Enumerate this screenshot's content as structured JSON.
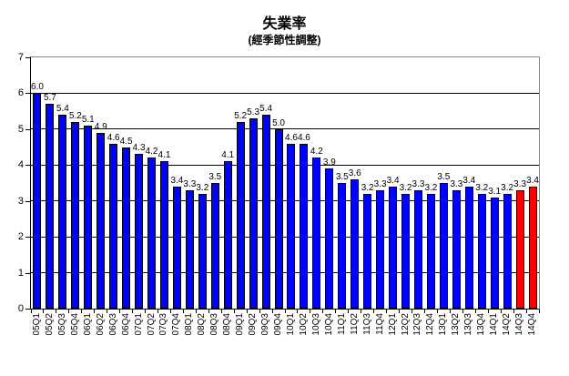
{
  "chart_data": {
    "type": "bar",
    "title": "失業率",
    "subtitle": "(經季節性調整)",
    "xlabel": "",
    "ylabel": "",
    "categories": [
      "05Q1",
      "05Q2",
      "05Q3",
      "05Q4",
      "06Q1",
      "06Q2",
      "06Q3",
      "06Q4",
      "07Q1",
      "07Q2",
      "07Q3",
      "07Q4",
      "08Q1",
      "08Q2",
      "08Q3",
      "08Q4",
      "09Q1",
      "09Q2",
      "09Q3",
      "09Q4",
      "10Q1",
      "10Q2",
      "10Q3",
      "10Q4",
      "11Q1",
      "11Q2",
      "11Q3",
      "11Q4",
      "12Q1",
      "12Q2",
      "12Q3",
      "12Q4",
      "13Q1",
      "13Q2",
      "13Q3",
      "13Q4",
      "14Q1",
      "14Q2",
      "14Q3",
      "14Q4"
    ],
    "values": [
      6.0,
      5.7,
      5.4,
      5.2,
      5.1,
      4.9,
      4.6,
      4.5,
      4.3,
      4.2,
      4.1,
      3.4,
      3.3,
      3.2,
      3.5,
      4.1,
      5.2,
      5.3,
      5.4,
      5.0,
      4.6,
      4.6,
      4.2,
      3.9,
      3.5,
      3.6,
      3.2,
      3.3,
      3.4,
      3.2,
      3.3,
      3.2,
      3.5,
      3.3,
      3.4,
      3.2,
      3.1,
      3.2,
      3.3,
      3.4
    ],
    "value_label_format": "one-decimal",
    "ylim": [
      0,
      7
    ],
    "yticks": [
      0,
      1,
      2,
      3,
      4,
      5,
      6,
      7
    ],
    "grid": "horizontal-black-lines-at-integers",
    "legend": "none",
    "highlight_indices": [
      38,
      39
    ],
    "colors": {
      "bar": "#0000FF",
      "highlight_bar": "#FF0000",
      "bar_border": "#000000",
      "axis": "#000000",
      "plot_border": "#848484",
      "background": "#FFFFFF",
      "text": "#000000"
    }
  }
}
